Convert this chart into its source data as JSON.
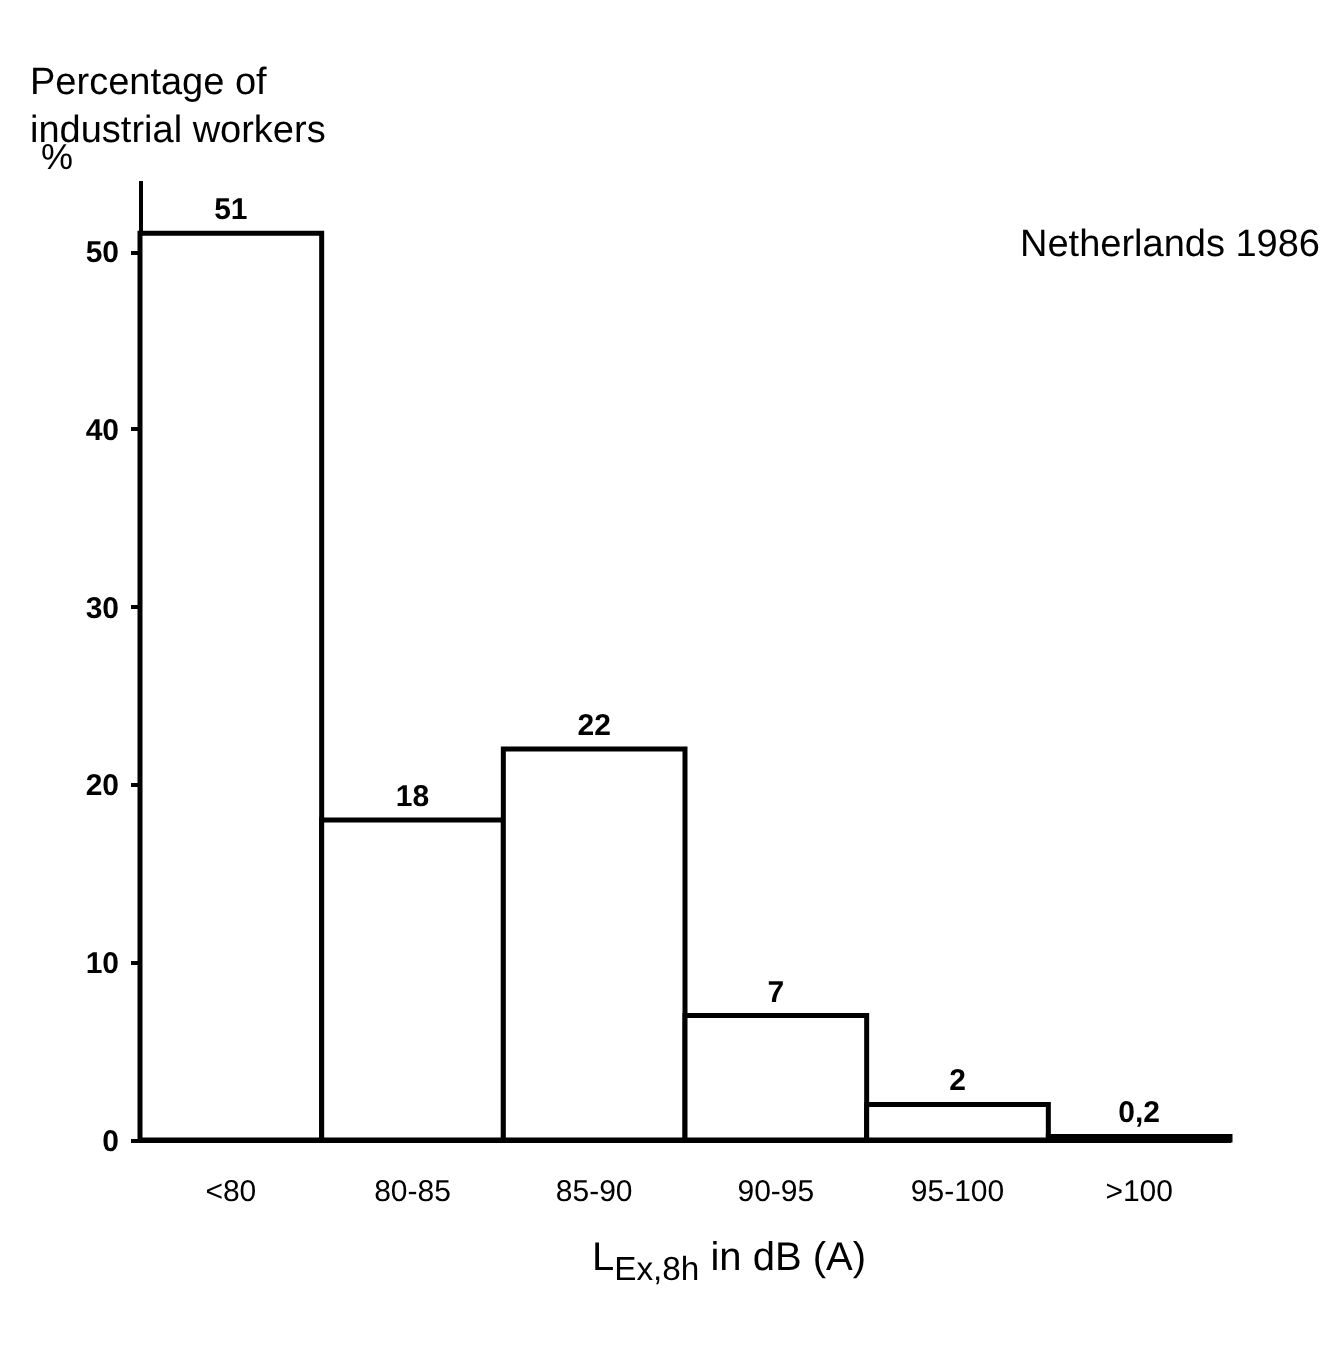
{
  "chart_data": {
    "type": "bar",
    "title": "Percentage of industrial workers",
    "ylabel": "%",
    "xlabel": "L$_{Ex,8h}$ in dB (A)",
    "annotations": [
      "Netherlands 1986"
    ],
    "categories": [
      "<80",
      "80-85",
      "85-90",
      "90-95",
      "95-100",
      ">100"
    ],
    "values": [
      51,
      18,
      22,
      7,
      2,
      0.2
    ],
    "value_labels": [
      "51",
      "18",
      "22",
      "7",
      "2",
      "0,2"
    ],
    "color": "#ffffff",
    "ylim": [
      0,
      54
    ],
    "yticks": [
      0,
      10,
      20,
      30,
      40,
      50
    ],
    "grid": false
  }
}
